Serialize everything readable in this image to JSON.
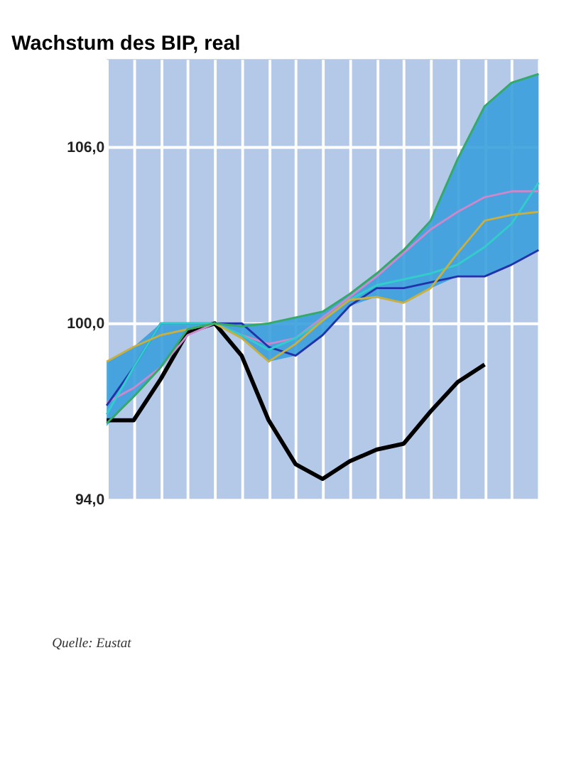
{
  "chart_data": {
    "type": "line",
    "title": "Wachstum des BIP, real",
    "categories": [
      null,
      null,
      null,
      null,
      null,
      null,
      null,
      null,
      null,
      null,
      null,
      null,
      null,
      null,
      null,
      null,
      null
    ],
    "series": [
      {
        "color": "#000000",
        "values": [
          96.7,
          96.7,
          98.1,
          99.7,
          100,
          98.9,
          96.7,
          95.2,
          94.7,
          95.3,
          95.7,
          95.9,
          97.0,
          98.0,
          98.6,
          null,
          null
        ]
      },
      {
        "color": "#cc88cc",
        "values": [
          97.3,
          97.8,
          98.5,
          99.6,
          100,
          99.6,
          99.3,
          99.5,
          100.2,
          100.9,
          101.6,
          102.4,
          103.2,
          103.8,
          104.3,
          104.5,
          104.5
        ]
      },
      {
        "color": "#2233aa",
        "values": [
          97.2,
          98.5,
          100,
          100,
          100,
          100,
          99.2,
          98.9,
          99.6,
          100.6,
          101.2,
          101.2,
          101.4,
          101.6,
          101.6,
          102.0,
          102.5
        ]
      },
      {
        "color": "#33cccc",
        "values": [
          96.9,
          98.5,
          100,
          100,
          100,
          99.6,
          99.1,
          99.5,
          100.1,
          100.8,
          101.3,
          101.5,
          101.7,
          102.0,
          102.6,
          103.4,
          104.8
        ],
        "lower": [
          96.5,
          97.5,
          98.5,
          99.6,
          100,
          99.5,
          98.7,
          98.9,
          99.6,
          100.6,
          100.9,
          100.7,
          101.2,
          101.6,
          101.6,
          102.0,
          102.5
        ],
        "upper": [
          98.7,
          99.2,
          100,
          100,
          100,
          100,
          100,
          100.2,
          100.4,
          101,
          101.7,
          102.5,
          103.5,
          105.6,
          107.4,
          108.2,
          108.5
        ]
      },
      {
        "color": "#c8b040",
        "values": [
          98.7,
          99.2,
          99.6,
          99.8,
          100,
          99.5,
          98.7,
          99.3,
          100.1,
          100.8,
          100.9,
          100.7,
          101.2,
          102.4,
          103.5,
          103.7,
          103.8
        ]
      },
      {
        "color": "#33aa66",
        "values": [
          96.6,
          97.5,
          98.5,
          99.8,
          100,
          99.9,
          100,
          100.2,
          100.4,
          101,
          101.7,
          102.5,
          103.5,
          105.6,
          107.4,
          108.2,
          108.5
        ]
      }
    ],
    "ylim": [
      94,
      109
    ],
    "yticks": [
      {
        "value": 94,
        "label": "94,0"
      },
      {
        "value": 100,
        "label": "100,0"
      },
      {
        "value": 106,
        "label": "106,0"
      }
    ],
    "tick_labels": "y",
    "grid": true,
    "annotations": [
      "Quelle: Eustat"
    ]
  }
}
